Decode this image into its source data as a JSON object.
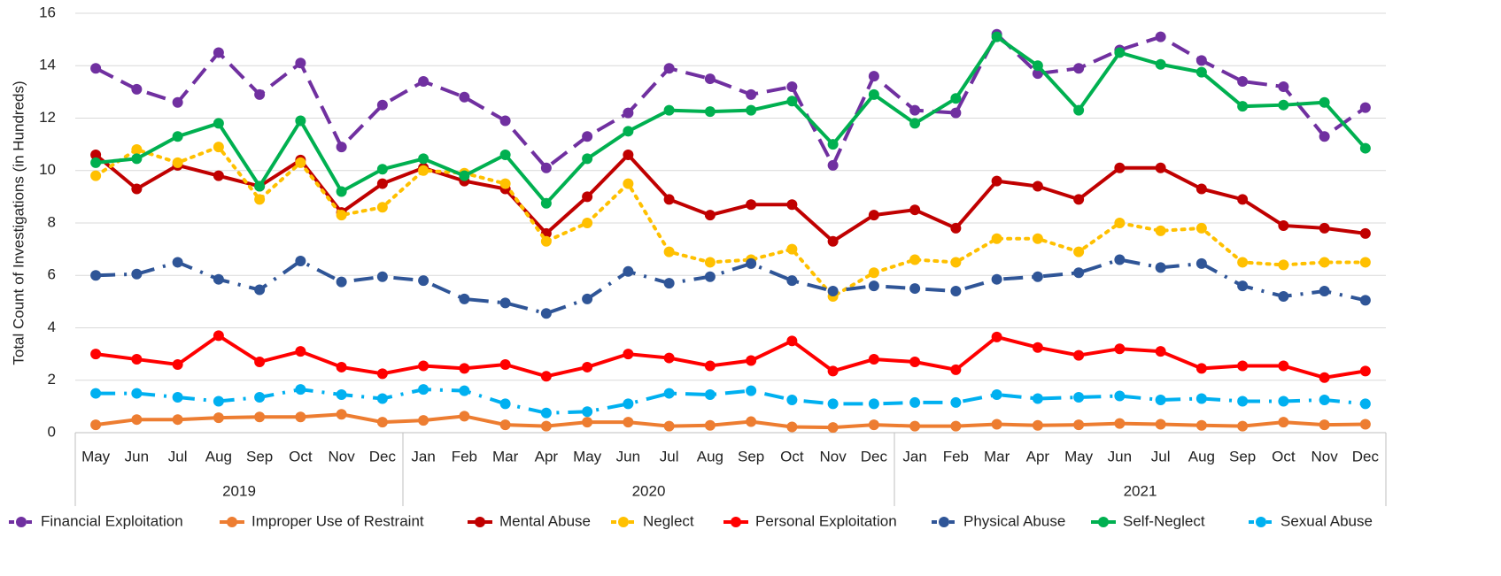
{
  "chart_data": {
    "type": "line",
    "y_label": "Total Count of  Investigations (in Hundreds)",
    "groups": [
      {
        "name": "2019",
        "categories": [
          "May",
          "Jun",
          "Jul",
          "Aug",
          "Sep",
          "Oct",
          "Nov",
          "Dec"
        ]
      },
      {
        "name": "2020",
        "categories": [
          "Jan",
          "Feb",
          "Mar",
          "Apr",
          "May",
          "Jun",
          "Jul",
          "Aug",
          "Sep",
          "Oct",
          "Nov",
          "Dec"
        ]
      },
      {
        "name": "2021",
        "categories": [
          "Jan",
          "Feb",
          "Mar",
          "Apr",
          "May",
          "Jun",
          "Jul",
          "Aug",
          "Sep",
          "Oct",
          "Nov",
          "Dec"
        ]
      }
    ],
    "ylim": [
      0,
      16
    ],
    "yticks": [
      0,
      2,
      4,
      6,
      8,
      10,
      12,
      14,
      16
    ],
    "grid": true,
    "legend": "bottom",
    "series": [
      {
        "name": "Financial Exploitation",
        "color": "#7030a0",
        "dash": "dashed",
        "values": [
          13.9,
          13.1,
          12.6,
          14.5,
          12.9,
          14.1,
          10.9,
          12.5,
          13.4,
          12.8,
          11.9,
          10.1,
          11.3,
          12.2,
          13.9,
          13.5,
          12.9,
          13.2,
          10.2,
          13.6,
          12.3,
          12.2,
          15.2,
          13.7,
          13.9,
          14.6,
          15.1,
          14.2,
          13.4,
          13.2,
          11.3,
          12.4
        ]
      },
      {
        "name": "Improper Use of Restraint",
        "color": "#ed7d31",
        "dash": "solid",
        "values": [
          0.3,
          0.5,
          0.5,
          0.57,
          0.6,
          0.6,
          0.7,
          0.4,
          0.47,
          0.63,
          0.3,
          0.25,
          0.4,
          0.4,
          0.25,
          0.28,
          0.42,
          0.22,
          0.2,
          0.3,
          0.25,
          0.25,
          0.32,
          0.28,
          0.3,
          0.35,
          0.32,
          0.28,
          0.25,
          0.4,
          0.3,
          0.32
        ]
      },
      {
        "name": "Mental Abuse",
        "color": "#c00000",
        "dash": "solid",
        "values": [
          10.6,
          9.3,
          10.2,
          9.8,
          9.4,
          10.4,
          8.4,
          9.5,
          10.1,
          9.6,
          9.3,
          7.6,
          9.0,
          10.6,
          8.9,
          8.3,
          8.7,
          8.7,
          7.3,
          8.3,
          8.5,
          7.8,
          9.6,
          9.4,
          8.9,
          10.1,
          10.1,
          9.3,
          8.9,
          7.9,
          7.8,
          7.6
        ]
      },
      {
        "name": "Neglect",
        "color": "#ffc000",
        "dash": "dotted",
        "values": [
          9.8,
          10.8,
          10.3,
          10.9,
          8.9,
          10.3,
          8.3,
          8.6,
          10.0,
          9.9,
          9.5,
          7.3,
          8.0,
          9.5,
          6.9,
          6.5,
          6.6,
          7.0,
          5.2,
          6.1,
          6.6,
          6.5,
          7.4,
          7.4,
          6.9,
          8.0,
          7.7,
          7.8,
          6.5,
          6.4,
          6.5,
          6.5
        ]
      },
      {
        "name": "Personal Exploitation",
        "color": "#ff0000",
        "dash": "solid",
        "values": [
          3.0,
          2.8,
          2.6,
          3.7,
          2.7,
          3.1,
          2.5,
          2.25,
          2.55,
          2.45,
          2.6,
          2.15,
          2.5,
          3.0,
          2.85,
          2.55,
          2.75,
          3.5,
          2.35,
          2.8,
          2.7,
          2.4,
          3.65,
          3.25,
          2.95,
          3.2,
          3.1,
          2.45,
          2.55,
          2.55,
          2.1,
          2.35
        ]
      },
      {
        "name": "Physical Abuse",
        "color": "#2f5597",
        "dash": "dashdot",
        "values": [
          6.0,
          6.05,
          6.5,
          5.85,
          5.45,
          6.55,
          5.75,
          5.95,
          5.8,
          5.1,
          4.95,
          4.55,
          5.1,
          6.15,
          5.7,
          5.95,
          6.45,
          5.8,
          5.4,
          5.6,
          5.5,
          5.4,
          5.85,
          5.95,
          6.1,
          6.6,
          6.3,
          6.45,
          5.6,
          5.2,
          5.4,
          5.05
        ]
      },
      {
        "name": "Self-Neglect",
        "color": "#00b050",
        "dash": "solid",
        "values": [
          10.3,
          10.45,
          11.3,
          11.8,
          9.4,
          11.9,
          9.2,
          10.05,
          10.45,
          9.8,
          10.6,
          8.75,
          10.45,
          11.5,
          12.3,
          12.25,
          12.3,
          12.65,
          11.0,
          12.9,
          11.8,
          12.75,
          15.1,
          14.0,
          12.3,
          14.5,
          14.05,
          13.75,
          12.45,
          12.5,
          12.6,
          10.85
        ]
      },
      {
        "name": "Sexual Abuse",
        "color": "#00b0f0",
        "dash": "dashdot",
        "values": [
          1.5,
          1.5,
          1.35,
          1.2,
          1.35,
          1.65,
          1.45,
          1.3,
          1.65,
          1.6,
          1.1,
          0.75,
          0.8,
          1.1,
          1.5,
          1.45,
          1.6,
          1.25,
          1.1,
          1.1,
          1.15,
          1.15,
          1.45,
          1.3,
          1.35,
          1.4,
          1.25,
          1.3,
          1.2,
          1.2,
          1.25,
          1.1
        ]
      }
    ]
  }
}
